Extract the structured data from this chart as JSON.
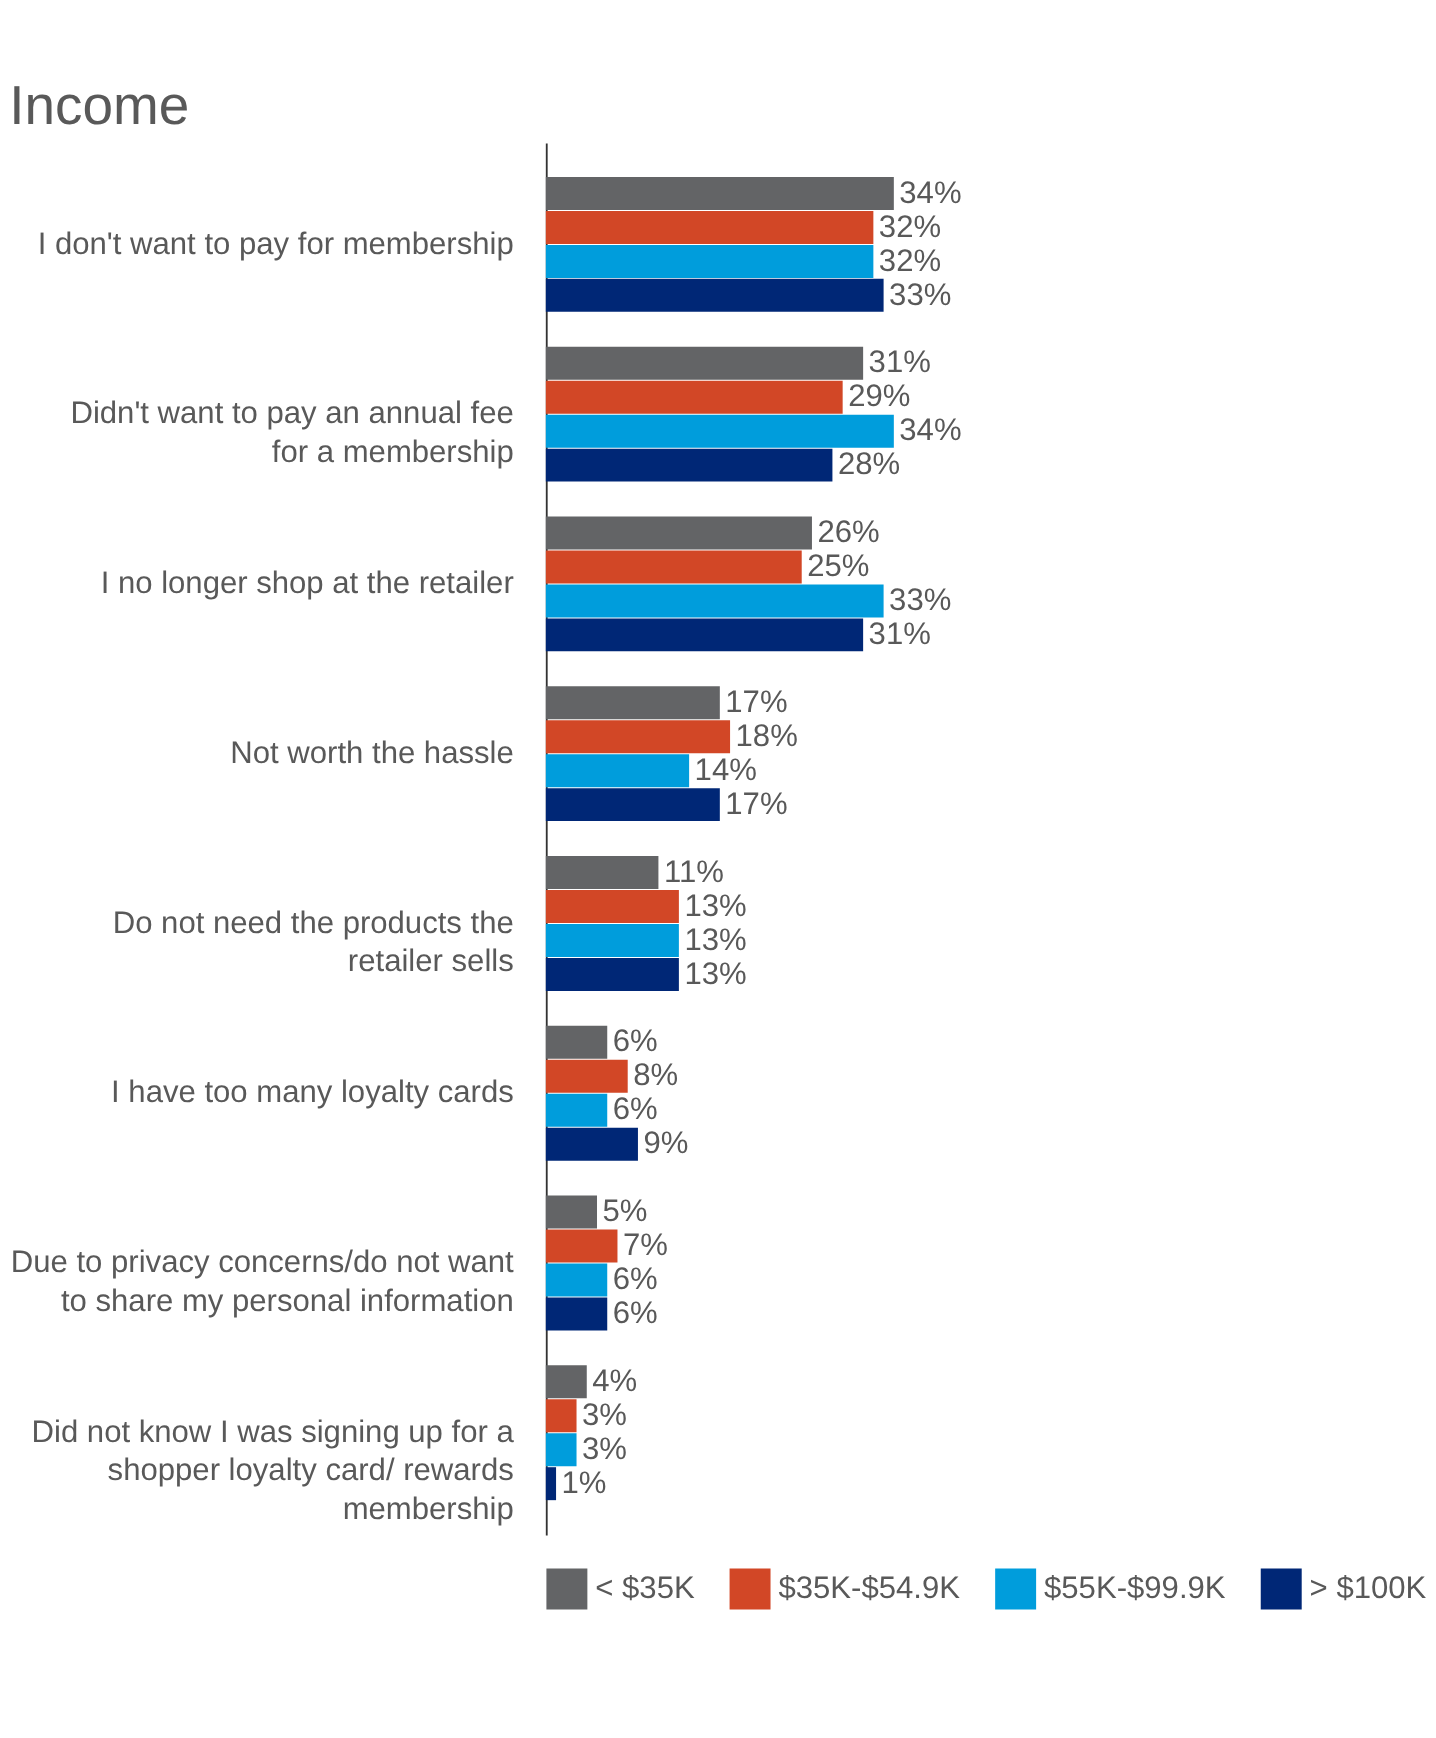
{
  "chart_data": {
    "type": "bar",
    "orientation": "horizontal",
    "title": "Income",
    "categories": [
      "I don't want to pay for membership",
      "Didn't want to pay an annual fee for a membership",
      "I no longer shop at the retailer",
      "Not worth the hassle",
      "Do not need the products the retailer sells",
      "I have too many loyalty cards",
      "Due to privacy concerns/do not want to share my personal information",
      "Did not know I was signing up for a shopper loyalty card/ rewards membership"
    ],
    "series": [
      {
        "name": "< $35K",
        "color": "#636466",
        "values": [
          34,
          31,
          26,
          17,
          11,
          6,
          5,
          4
        ],
        "value_labels": [
          "34%",
          "31%",
          "26%",
          "17%",
          "11%",
          "6%",
          "5%",
          "4%"
        ]
      },
      {
        "name": "$35K-$54.9K",
        "color": "#d24726",
        "values": [
          32,
          29,
          25,
          18,
          13,
          8,
          7,
          3
        ],
        "value_labels": [
          "32%",
          "29%",
          "25%",
          "18%",
          "13%",
          "8%",
          "7%",
          "3%"
        ]
      },
      {
        "name": "$55K-$99.9K",
        "color": "#009ddc",
        "values": [
          32,
          34,
          33,
          14,
          13,
          6,
          6,
          3
        ],
        "value_labels": [
          "32%",
          "34%",
          "33%",
          "14%",
          "13%",
          "6%",
          "6%",
          "3%"
        ]
      },
      {
        "name": "> $100K",
        "color": "#002776",
        "values": [
          33,
          28,
          31,
          17,
          13,
          9,
          6,
          1
        ],
        "value_labels": [
          "33%",
          "28%",
          "31%",
          "17%",
          "13%",
          "9%",
          "6%",
          "1%"
        ]
      }
    ],
    "legend": "bottom",
    "grid": false
  }
}
